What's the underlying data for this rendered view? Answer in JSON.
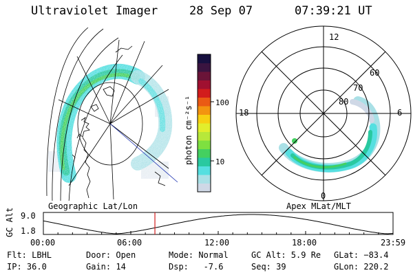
{
  "header": {
    "instrument": "Ultraviolet Imager",
    "date": "28 Sep 07",
    "time": "07:39:21 UT"
  },
  "left_panel": {
    "caption": "Geographic Lat/Lon"
  },
  "right_panel": {
    "caption": "Apex MLat/MLT",
    "mlt_labels": {
      "top": "12",
      "left": "18",
      "right": "6",
      "bottom": "0"
    },
    "lat_labels": [
      "60",
      "70",
      "80"
    ]
  },
  "colorbar": {
    "unit_label": "photon cm⁻²s⁻¹",
    "tick_100": "100",
    "tick_10": "10",
    "colors": [
      "#cfd8e6",
      "#a9e0e6",
      "#55dfe0",
      "#29c9a0",
      "#44d060",
      "#7ee040",
      "#b7e83a",
      "#e2ee2c",
      "#f7d012",
      "#f39410",
      "#ea5a14",
      "#d21c1c",
      "#a01030",
      "#6a1438",
      "#3a1440",
      "#171040"
    ]
  },
  "timeline": {
    "axis_label": "GC Alt",
    "y_ticks": [
      "9.0",
      "1.8"
    ],
    "x_ticks": [
      "00:00",
      "06:00",
      "12:00",
      "18:00",
      "23:59"
    ],
    "current_time_hours": 7.656,
    "marker_color": "#d21c1c"
  },
  "footer": {
    "flt": "Flt: LBHL",
    "ip": "IP: 36.0",
    "door": "Door: Open",
    "gain": "Gain: 14",
    "mode": "Mode: Normal",
    "dsp": "Dsp:   -7.6",
    "gc_alt": "GC Alt: 5.9 Re",
    "seq": "Seq: 39",
    "glat": "GLat: −83.4",
    "glon": "GLon: 220.2"
  }
}
